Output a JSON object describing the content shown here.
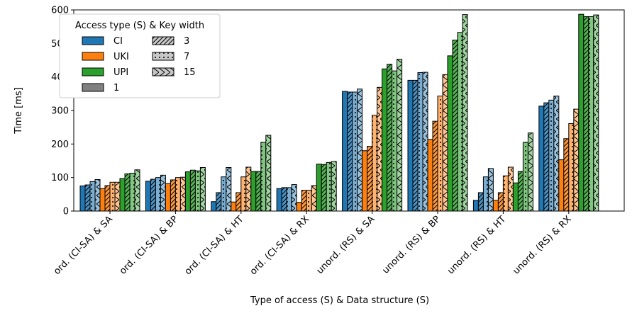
{
  "chart_data": {
    "type": "bar",
    "title": "",
    "xlabel": "Type of access (S) & Data structure (S)",
    "ylabel": "Time [ms]",
    "ylim": [
      0,
      600
    ],
    "yticks": [
      0,
      100,
      200,
      300,
      400,
      500,
      600
    ],
    "grid": false,
    "legend_position": "top-left",
    "categories": [
      "ord. (CI-SA) & SA",
      "ord. (CI-SA) & BP",
      "ord. (CI-SA) & HT",
      "ord. (CI-SA) & RX",
      "unord. (RS) & SA",
      "unord. (RS) & BP",
      "unord. (RS) & HT",
      "unord. (RS) & RX"
    ],
    "legend": {
      "title": "Access type (S) & Key width",
      "access_types": [
        {
          "label": "CI",
          "color": "#1f77b4"
        },
        {
          "label": "UKI",
          "color": "#ff7f0e"
        },
        {
          "label": "UPI",
          "color": "#2ca02c"
        },
        {
          "label": "1",
          "color": "#808080"
        }
      ],
      "key_widths": [
        {
          "label": "3",
          "pattern": "hatch-3"
        },
        {
          "label": "7",
          "pattern": "hatch-7"
        },
        {
          "label": "15",
          "pattern": "hatch-15"
        }
      ]
    },
    "key_width_order": [
      "1",
      "3",
      "7",
      "15"
    ],
    "series": [
      {
        "name": "CI",
        "color": "#1f77b4",
        "values": [
          [
            75,
            78,
            88,
            94
          ],
          [
            89,
            95,
            100,
            107
          ],
          [
            28,
            55,
            102,
            130
          ],
          [
            67,
            70,
            70,
            79
          ],
          [
            357,
            355,
            355,
            364
          ],
          [
            390,
            390,
            413,
            414
          ],
          [
            32,
            55,
            102,
            127
          ],
          [
            313,
            323,
            331,
            343
          ]
        ]
      },
      {
        "name": "UKI",
        "color": "#ff7f0e",
        "values": [
          [
            67,
            76,
            86,
            86
          ],
          [
            82,
            93,
            100,
            101
          ],
          [
            27,
            55,
            102,
            131
          ],
          [
            26,
            62,
            62,
            76
          ],
          [
            180,
            193,
            286,
            369
          ],
          [
            214,
            268,
            343,
            407
          ],
          [
            32,
            55,
            105,
            131
          ],
          [
            153,
            216,
            261,
            304
          ]
        ]
      },
      {
        "name": "UPI",
        "color": "#2ca02c",
        "values": [
          [
            97,
            111,
            113,
            123
          ],
          [
            117,
            122,
            120,
            130
          ],
          [
            118,
            118,
            205,
            226
          ],
          [
            140,
            139,
            145,
            148
          ],
          [
            424,
            438,
            418,
            453
          ],
          [
            463,
            510,
            533,
            586
          ],
          [
            84,
            118,
            205,
            233
          ],
          [
            587,
            580,
            580,
            585
          ]
        ]
      }
    ]
  }
}
